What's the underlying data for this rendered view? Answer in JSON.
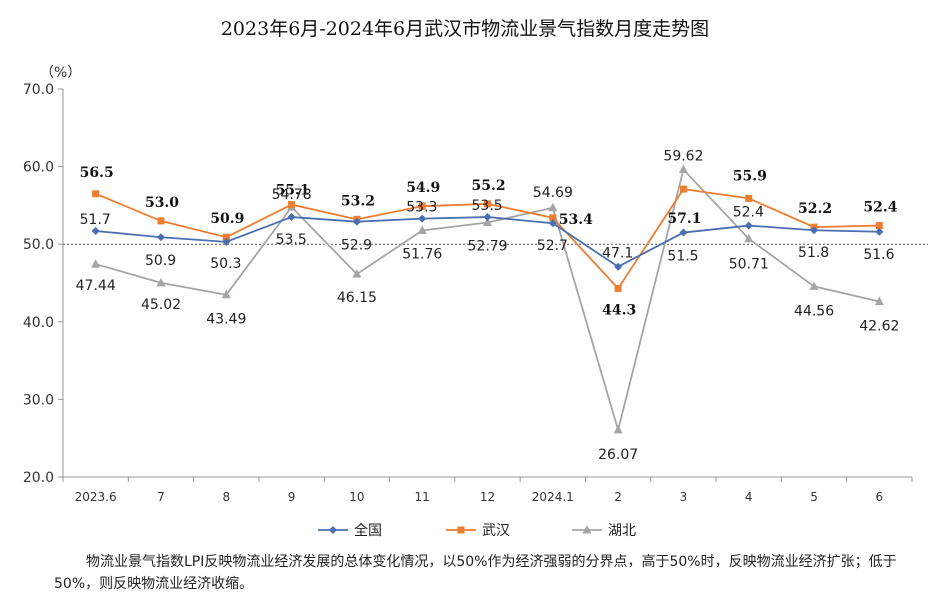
{
  "chart_data": {
    "type": "line",
    "title": "2023年6月-2024年6月武汉市物流业景气指数月度走势图",
    "unit_label": "（%）",
    "categories": [
      "2023.6",
      "7",
      "8",
      "9",
      "10",
      "11",
      "12",
      "2024.1",
      "2",
      "3",
      "4",
      "5",
      "6"
    ],
    "ylim": [
      20,
      70
    ],
    "yticks": [
      "20.0",
      "30.0",
      "40.0",
      "50.0",
      "60.0",
      "70.0"
    ],
    "reference_line": 50,
    "series": [
      {
        "name": "全国",
        "color": "#4A6FB0",
        "marker": "diamond",
        "values": [
          51.7,
          50.9,
          50.3,
          53.5,
          52.9,
          53.3,
          53.5,
          52.7,
          47.1,
          51.5,
          52.4,
          51.8,
          51.6
        ],
        "labels": [
          "51.7",
          "50.9",
          "50.3",
          "53.5",
          "52.9",
          "53.3",
          "53.5",
          "52.7",
          "47.1",
          "51.5",
          "52.4",
          "51.8",
          "51.6"
        ]
      },
      {
        "name": "武汉",
        "color": "#ED7D31",
        "marker": "square",
        "values": [
          56.5,
          53.0,
          50.9,
          55.1,
          53.2,
          54.9,
          55.2,
          53.4,
          44.3,
          57.1,
          55.9,
          52.2,
          52.4
        ],
        "labels": [
          "56.5",
          "53.0",
          "50.9",
          "55.1",
          "53.2",
          "54.9",
          "55.2",
          "53.4",
          "44.3",
          "57.1",
          "55.9",
          "52.2",
          "52.4"
        ]
      },
      {
        "name": "湖北",
        "color": "#A5A5A5",
        "marker": "triangle",
        "values": [
          47.44,
          45.02,
          43.49,
          54.78,
          46.15,
          51.76,
          52.79,
          54.69,
          26.07,
          59.62,
          50.71,
          44.56,
          42.62
        ],
        "labels": [
          "47.44",
          "45.02",
          "43.49",
          "54.78",
          "46.15",
          "51.76",
          "52.79",
          "54.69",
          "26.07",
          "59.62",
          "50.71",
          "44.56",
          "42.62"
        ]
      }
    ],
    "grid": false,
    "legend_position": "bottom"
  },
  "footnote": "物流业景气指数LPI反映物流业经济发展的总体变化情况，以50%作为经济强弱的分界点，高于50%时，反映物流业经济扩张；低于50%，则反映物流业经济收缩。"
}
